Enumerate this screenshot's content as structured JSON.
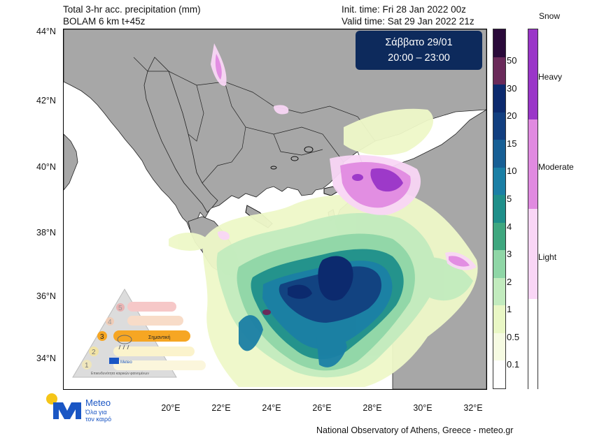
{
  "header": {
    "title_line1": "Total 3-hr acc. precipitation (mm)",
    "title_line2": "BOLAM 6 km t+45z",
    "init_time": "Init. time: Fri 28 Jan 2022 00z",
    "valid_time": "Valid time: Sat 29 Jan 2022 21z"
  },
  "date_box": {
    "line1": "Σάββατο 29/01",
    "line2": "20:00 – 23:00"
  },
  "axes": {
    "lat_labels": [
      "44°N",
      "42°N",
      "40°N",
      "38°N",
      "36°N",
      "34°N"
    ],
    "lon_labels": [
      "20°E",
      "22°E",
      "24°E",
      "26°E",
      "28°E",
      "30°E",
      "32°E"
    ]
  },
  "colorbar": {
    "labels": [
      "50",
      "30",
      "20",
      "15",
      "10",
      "5",
      "4",
      "3",
      "2",
      "1",
      "0.5",
      "0.1"
    ],
    "colors": [
      "#2a0a3a",
      "#6a2a5a",
      "#0c2a6e",
      "#123f80",
      "#175f95",
      "#1b7fa5",
      "#1f8f8a",
      "#3fa77f",
      "#8fd6a6",
      "#c2ebbe",
      "#e9f7c5",
      "#f6fbe2",
      "#ffffff"
    ]
  },
  "snow_bar": {
    "title": "Snow",
    "labels": [
      "Heavy",
      "Moderate",
      "Light"
    ],
    "colors": [
      "#9a35c8",
      "#e08ae0",
      "#f9d6f6",
      "#ffffff"
    ]
  },
  "colors": {
    "land": "#a7a7a7",
    "sea": "#ffffff",
    "box": "#0d2a5c"
  },
  "legend_triangle": {
    "levels": [
      "1",
      "2",
      "3",
      "4",
      "5"
    ],
    "highlight_label": "Σημαντική",
    "caption": "Επικινδυνότητα καιρικών φαινομένων",
    "logo_text": "Meteo"
  },
  "logo": {
    "name": "Meteo",
    "tagline_1": "Όλα για",
    "tagline_2": "τον καιρό"
  },
  "footer": "National Observatory of Athens, Greece - meteo.gr"
}
